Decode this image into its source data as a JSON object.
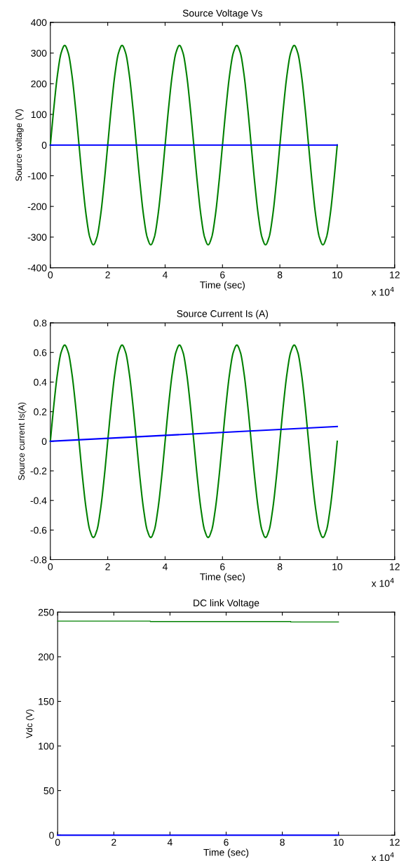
{
  "chart_data": [
    {
      "type": "line",
      "title": "Source Voltage Vs",
      "xlabel": "Time (sec)",
      "ylabel": "Source voltage (V)",
      "annotations": [
        "x 10$^{4}$"
      ],
      "xlim": [
        0,
        12
      ],
      "xticks": [
        0,
        2,
        4,
        6,
        8,
        10,
        12
      ],
      "ylim": [
        -400,
        400
      ],
      "yticks": [
        -400,
        -300,
        -200,
        -100,
        0,
        100,
        200,
        300,
        400
      ],
      "grid": false,
      "legend": false,
      "series": [
        {
          "color": "#008000",
          "x": [
            0,
            0.125,
            0.25,
            0.375,
            0.5,
            0.625,
            0.75,
            0.875,
            1,
            1.125,
            1.25,
            1.375,
            1.5,
            1.625,
            1.75,
            1.875,
            2,
            2.125,
            2.25,
            2.375,
            2.5,
            2.625,
            2.75,
            2.875,
            3,
            3.125,
            3.25,
            3.375,
            3.5,
            3.625,
            3.75,
            3.875,
            4,
            4.125,
            4.25,
            4.375,
            4.5,
            4.625,
            4.75,
            4.875,
            5,
            5.125,
            5.25,
            5.375,
            5.5,
            5.625,
            5.75,
            5.875,
            6,
            6.125,
            6.25,
            6.375,
            6.5,
            6.625,
            6.75,
            6.875,
            7,
            7.125,
            7.25,
            7.375,
            7.5,
            7.625,
            7.75,
            7.875,
            8,
            8.125,
            8.25,
            8.375,
            8.5,
            8.625,
            8.75,
            8.875,
            9,
            9.125,
            9.25,
            9.375,
            9.5,
            9.625,
            9.75,
            9.875,
            10
          ],
          "values": [
            0,
            124,
            230,
            300,
            325,
            300,
            230,
            124,
            0,
            -124,
            -230,
            -300,
            -325,
            -300,
            -230,
            -124,
            0,
            124,
            230,
            300,
            325,
            300,
            230,
            124,
            0,
            -124,
            -230,
            -300,
            -325,
            -300,
            -230,
            -124,
            0,
            124,
            230,
            300,
            325,
            300,
            230,
            124,
            0,
            -124,
            -230,
            -300,
            -325,
            -300,
            -230,
            -124,
            0,
            124,
            230,
            300,
            325,
            300,
            230,
            124,
            0,
            -124,
            -230,
            -300,
            -325,
            -300,
            -230,
            -124,
            0,
            124,
            230,
            300,
            325,
            300,
            230,
            124,
            0,
            -124,
            -230,
            -300,
            -325,
            -300,
            -230,
            -124,
            0
          ]
        },
        {
          "color": "#0000ff",
          "x": [
            0,
            10
          ],
          "values": [
            0,
            0
          ]
        }
      ]
    },
    {
      "type": "line",
      "title": "Source Current Is (A)",
      "xlabel": "Time (sec)",
      "ylabel": "Source current Is(A)",
      "annotations": [
        "x 10$^{4}$"
      ],
      "xlim": [
        0,
        12
      ],
      "xticks": [
        0,
        2,
        4,
        6,
        8,
        10,
        12
      ],
      "ylim": [
        -0.8,
        0.8
      ],
      "yticks": [
        -0.8,
        -0.6,
        -0.4,
        -0.2,
        0,
        0.2,
        0.4,
        0.6,
        0.8
      ],
      "grid": false,
      "legend": false,
      "series": [
        {
          "color": "#008000",
          "x": [
            0,
            0.125,
            0.25,
            0.375,
            0.5,
            0.625,
            0.75,
            0.875,
            1,
            1.125,
            1.25,
            1.375,
            1.5,
            1.625,
            1.75,
            1.875,
            2,
            2.125,
            2.25,
            2.375,
            2.5,
            2.625,
            2.75,
            2.875,
            3,
            3.125,
            3.25,
            3.375,
            3.5,
            3.625,
            3.75,
            3.875,
            4,
            4.125,
            4.25,
            4.375,
            4.5,
            4.625,
            4.75,
            4.875,
            5,
            5.125,
            5.25,
            5.375,
            5.5,
            5.625,
            5.75,
            5.875,
            6,
            6.125,
            6.25,
            6.375,
            6.5,
            6.625,
            6.75,
            6.875,
            7,
            7.125,
            7.25,
            7.375,
            7.5,
            7.625,
            7.75,
            7.875,
            8,
            8.125,
            8.25,
            8.375,
            8.5,
            8.625,
            8.75,
            8.875,
            9,
            9.125,
            9.25,
            9.375,
            9.5,
            9.625,
            9.75,
            9.875,
            10
          ],
          "values": [
            0,
            0.25,
            0.46,
            0.6,
            0.65,
            0.6,
            0.46,
            0.25,
            0,
            -0.25,
            -0.46,
            -0.6,
            -0.65,
            -0.6,
            -0.46,
            -0.25,
            0,
            0.25,
            0.46,
            0.6,
            0.65,
            0.6,
            0.46,
            0.25,
            0,
            -0.25,
            -0.46,
            -0.6,
            -0.65,
            -0.6,
            -0.46,
            -0.25,
            0,
            0.25,
            0.46,
            0.6,
            0.65,
            0.6,
            0.46,
            0.25,
            0,
            -0.25,
            -0.46,
            -0.6,
            -0.65,
            -0.6,
            -0.46,
            -0.25,
            0,
            0.25,
            0.46,
            0.6,
            0.65,
            0.6,
            0.46,
            0.25,
            0,
            -0.25,
            -0.46,
            -0.6,
            -0.65,
            -0.6,
            -0.46,
            -0.25,
            0,
            0.25,
            0.46,
            0.6,
            0.65,
            0.6,
            0.46,
            0.25,
            0,
            -0.25,
            -0.46,
            -0.6,
            -0.65,
            -0.6,
            -0.46,
            -0.25,
            0
          ]
        },
        {
          "color": "#0000ff",
          "x": [
            0,
            10
          ],
          "values": [
            0,
            0.1
          ]
        }
      ]
    },
    {
      "type": "line",
      "title": "DC link Voltage",
      "xlabel": "Time (sec)",
      "ylabel": "Vdc (V)",
      "annotations": [
        "x 10$^{4}$"
      ],
      "xlim": [
        0,
        12
      ],
      "xticks": [
        0,
        2,
        4,
        6,
        8,
        10,
        12
      ],
      "ylim": [
        0,
        250
      ],
      "yticks": [
        0,
        50,
        100,
        150,
        200,
        250
      ],
      "grid": false,
      "legend": false,
      "series": [
        {
          "color": "#008000",
          "type": "step",
          "x": [
            0,
            3.3,
            8.3,
            10
          ],
          "values": [
            240,
            239.5,
            239,
            239
          ]
        },
        {
          "color": "#0000ff",
          "x": [
            0,
            10
          ],
          "values": [
            0,
            0
          ]
        }
      ]
    }
  ]
}
